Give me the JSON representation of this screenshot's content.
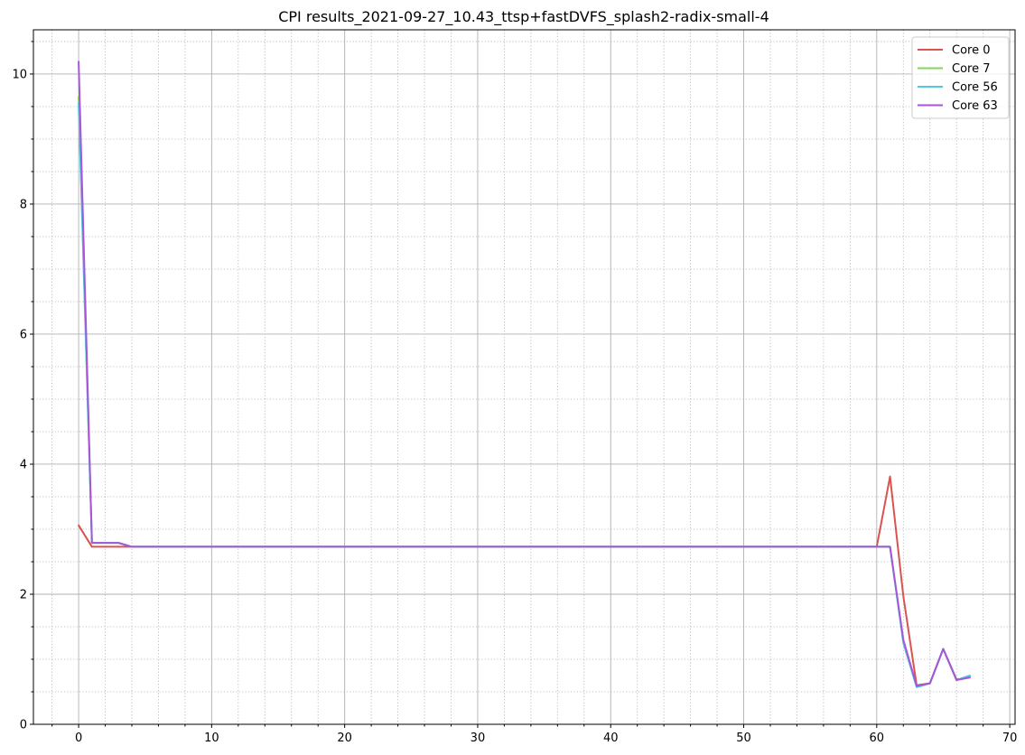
{
  "chart_data": {
    "type": "line",
    "title": "CPI results_2021-09-27_10.43_ttsp+fastDVFS_splash2-radix-small-4",
    "xlabel": "",
    "ylabel": "",
    "xlim": [
      -3.4,
      70.4
    ],
    "ylim": [
      0,
      10.68
    ],
    "xticks": [
      0,
      10,
      20,
      30,
      40,
      50,
      60,
      70
    ],
    "yticks": [
      0,
      2,
      4,
      6,
      8,
      10
    ],
    "xminor_step": 2,
    "yminor_step": 0.5,
    "grid": "major solid, minor dotted",
    "legend_position": "top-right",
    "x": [
      0,
      1,
      2,
      3,
      4,
      5,
      6,
      7,
      8,
      9,
      10,
      11,
      12,
      13,
      14,
      15,
      16,
      17,
      18,
      19,
      20,
      21,
      22,
      23,
      24,
      25,
      26,
      27,
      28,
      29,
      30,
      31,
      32,
      33,
      34,
      35,
      36,
      37,
      38,
      39,
      40,
      41,
      42,
      43,
      44,
      45,
      46,
      47,
      48,
      49,
      50,
      51,
      52,
      53,
      54,
      55,
      56,
      57,
      58,
      59,
      60,
      61,
      62,
      63,
      64,
      65,
      66,
      67
    ],
    "series": [
      {
        "name": "Core 0",
        "color": "#d9534f",
        "values": [
          3.06,
          2.73,
          2.73,
          2.73,
          2.73,
          2.73,
          2.73,
          2.73,
          2.73,
          2.73,
          2.73,
          2.73,
          2.73,
          2.73,
          2.73,
          2.73,
          2.73,
          2.73,
          2.73,
          2.73,
          2.73,
          2.73,
          2.73,
          2.73,
          2.73,
          2.73,
          2.73,
          2.73,
          2.73,
          2.73,
          2.73,
          2.73,
          2.73,
          2.73,
          2.73,
          2.73,
          2.73,
          2.73,
          2.73,
          2.73,
          2.73,
          2.73,
          2.73,
          2.73,
          2.73,
          2.73,
          2.73,
          2.73,
          2.73,
          2.73,
          2.73,
          2.73,
          2.73,
          2.73,
          2.73,
          2.73,
          2.73,
          2.73,
          2.73,
          2.73,
          2.73,
          3.81,
          1.97,
          0.6,
          0.63,
          1.16,
          0.69,
          0.72
        ]
      },
      {
        "name": "Core 7",
        "color": "#7ed957",
        "values": [
          9.65,
          2.79,
          2.79,
          2.79,
          2.73,
          2.73,
          2.73,
          2.73,
          2.73,
          2.73,
          2.73,
          2.73,
          2.73,
          2.73,
          2.73,
          2.73,
          2.73,
          2.73,
          2.73,
          2.73,
          2.73,
          2.73,
          2.73,
          2.73,
          2.73,
          2.73,
          2.73,
          2.73,
          2.73,
          2.73,
          2.73,
          2.73,
          2.73,
          2.73,
          2.73,
          2.73,
          2.73,
          2.73,
          2.73,
          2.73,
          2.73,
          2.73,
          2.73,
          2.73,
          2.73,
          2.73,
          2.73,
          2.73,
          2.73,
          2.73,
          2.73,
          2.73,
          2.73,
          2.73,
          2.73,
          2.73,
          2.73,
          2.73,
          2.73,
          2.73,
          2.73,
          2.73,
          1.27,
          0.58,
          0.63,
          1.16,
          0.68,
          0.74
        ]
      },
      {
        "name": "Core 56",
        "color": "#4fc9e0",
        "values": [
          9.55,
          2.79,
          2.79,
          2.79,
          2.73,
          2.73,
          2.73,
          2.73,
          2.73,
          2.73,
          2.73,
          2.73,
          2.73,
          2.73,
          2.73,
          2.73,
          2.73,
          2.73,
          2.73,
          2.73,
          2.73,
          2.73,
          2.73,
          2.73,
          2.73,
          2.73,
          2.73,
          2.73,
          2.73,
          2.73,
          2.73,
          2.73,
          2.73,
          2.73,
          2.73,
          2.73,
          2.73,
          2.73,
          2.73,
          2.73,
          2.73,
          2.73,
          2.73,
          2.73,
          2.73,
          2.73,
          2.73,
          2.73,
          2.73,
          2.73,
          2.73,
          2.73,
          2.73,
          2.73,
          2.73,
          2.73,
          2.73,
          2.73,
          2.73,
          2.73,
          2.73,
          2.73,
          1.25,
          0.57,
          0.63,
          1.16,
          0.68,
          0.75
        ]
      },
      {
        "name": "Core 63",
        "color": "#a855d8",
        "values": [
          10.19,
          2.79,
          2.79,
          2.79,
          2.73,
          2.73,
          2.73,
          2.73,
          2.73,
          2.73,
          2.73,
          2.73,
          2.73,
          2.73,
          2.73,
          2.73,
          2.73,
          2.73,
          2.73,
          2.73,
          2.73,
          2.73,
          2.73,
          2.73,
          2.73,
          2.73,
          2.73,
          2.73,
          2.73,
          2.73,
          2.73,
          2.73,
          2.73,
          2.73,
          2.73,
          2.73,
          2.73,
          2.73,
          2.73,
          2.73,
          2.73,
          2.73,
          2.73,
          2.73,
          2.73,
          2.73,
          2.73,
          2.73,
          2.73,
          2.73,
          2.73,
          2.73,
          2.73,
          2.73,
          2.73,
          2.73,
          2.73,
          2.73,
          2.73,
          2.73,
          2.73,
          2.73,
          1.3,
          0.59,
          0.63,
          1.16,
          0.68,
          0.72
        ]
      }
    ]
  }
}
